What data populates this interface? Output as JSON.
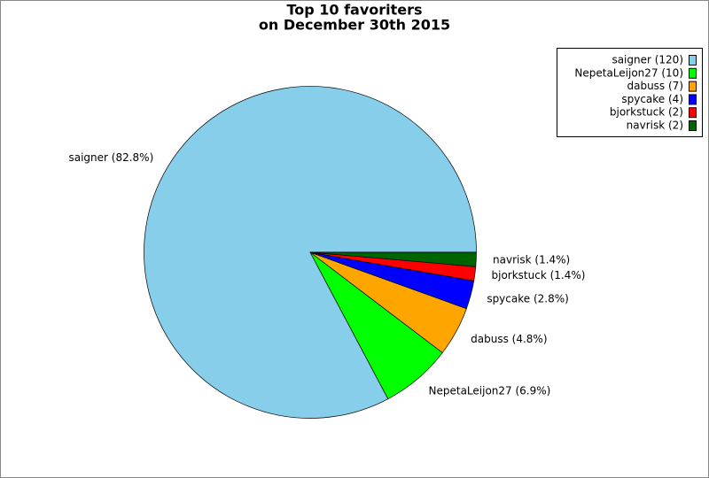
{
  "chart_data": {
    "type": "pie",
    "title": "Top 10 favoriters",
    "subtitle": "on December 30th 2015",
    "values": [
      120,
      10,
      7,
      4,
      2,
      2
    ],
    "colors": [
      "#87ceeb",
      "#00ff00",
      "#ffa500",
      "#0000ff",
      "#ff0000",
      "#006400"
    ],
    "legend_labels": [
      "saigner (120)",
      "NepetaLeijon27 (10)",
      "dabuss (7)",
      "spycake (4)",
      "bjorkstuck (2)",
      "navrisk (2)"
    ],
    "slice_labels": [
      "saigner (82.8%)",
      "NepetaLeijon27 (6.9%)",
      "dabuss (4.8%)",
      "spycake (2.8%)",
      "bjorkstuck (1.4%)",
      "navrisk (1.4%)"
    ],
    "legend_position": "upper right"
  }
}
